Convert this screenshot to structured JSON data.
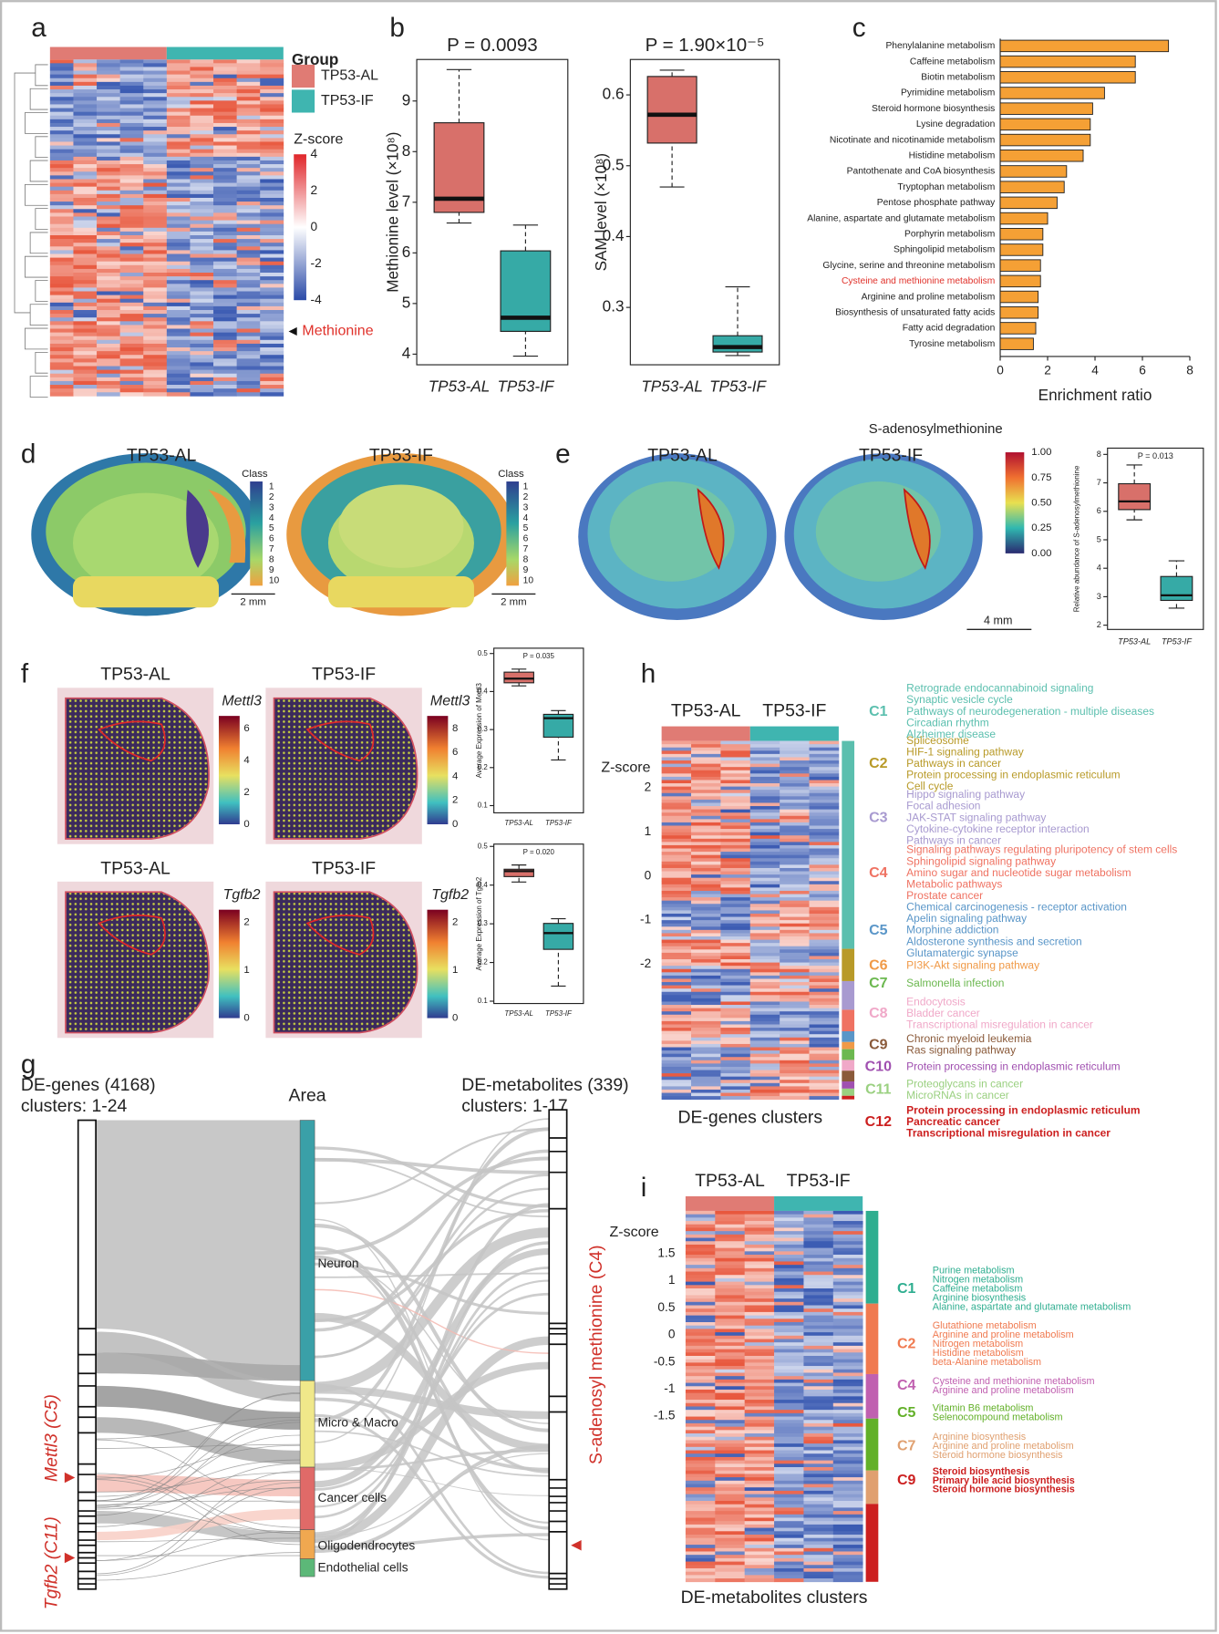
{
  "panel_labels": [
    "a",
    "b",
    "c",
    "d",
    "e",
    "f",
    "g",
    "h",
    "i"
  ],
  "a": {
    "group_title": "Group",
    "groups": [
      "TP53-AL",
      "TP53-IF"
    ],
    "group_colors": [
      "#e07b74",
      "#3fb5b0"
    ],
    "zscore_title": "Z-score",
    "zscore_ticks": [
      4,
      2,
      0,
      -2,
      -4
    ],
    "annotation": "Methionine"
  },
  "chart_data": [
    {
      "type": "box",
      "title": "P = 0.0093",
      "ylabel": "Methionine level (×10⁸)",
      "categories": [
        "TP53-AL",
        "TP53-IF"
      ],
      "values": [
        [
          6.59,
          6.8,
          7.07,
          8.57,
          9.62
        ],
        [
          3.96,
          4.45,
          4.72,
          6.04,
          6.55
        ]
      ],
      "colors": [
        "#d8706a",
        "#36aaa6"
      ],
      "ylim": [
        3.79,
        9.82
      ],
      "yticks": [
        4,
        5,
        6,
        7,
        8,
        9
      ]
    },
    {
      "type": "box",
      "title": "P = 1.90×10⁻⁵",
      "ylabel": "SAM level (×10⁸)",
      "categories": [
        "TP53-AL",
        "TP53-IF"
      ],
      "values": [
        [
          0.47,
          0.532,
          0.572,
          0.626,
          0.635
        ],
        [
          0.232,
          0.237,
          0.244,
          0.26,
          0.329
        ]
      ],
      "colors": [
        "#d8706a",
        "#36aaa6"
      ],
      "ylim": [
        0.219,
        0.65
      ],
      "yticks": [
        0.3,
        0.4,
        0.5,
        0.6
      ]
    },
    {
      "type": "hbar",
      "xlabel": "Enrichment ratio",
      "categories": [
        "Phenylalanine metabolism",
        "Caffeine metabolism",
        "Biotin metabolism",
        "Pyrimidine metabolism",
        "Steroid hormone biosynthesis",
        "Lysine degradation",
        "Nicotinate and nicotinamide metabolism",
        "Histidine metabolism",
        "Pantothenate and CoA biosynthesis",
        "Tryptophan metabolism",
        "Pentose phosphate pathway",
        "Alanine, aspartate and glutamate metabolism",
        "Porphyrin metabolism",
        "Sphingolipid metabolism",
        "Glycine, serine and threonine metabolism",
        "Cysteine and methionine metabolism",
        "Arginine and proline metabolism",
        "Biosynthesis of unsaturated fatty acids",
        "Fatty acid degradation",
        "Tyrosine metabolism"
      ],
      "values": [
        7.1,
        5.7,
        5.7,
        4.4,
        3.9,
        3.8,
        3.8,
        3.5,
        2.8,
        2.7,
        2.4,
        2.0,
        1.8,
        1.8,
        1.7,
        1.7,
        1.6,
        1.6,
        1.5,
        1.4
      ],
      "color": "#f5a035",
      "highlight_index": 15,
      "highlight_color": "#e0312a",
      "xlim": [
        0,
        8
      ],
      "xticks": [
        0,
        2,
        4,
        6,
        8
      ]
    },
    {
      "type": "box",
      "title": "P = 0.013",
      "ylabel": "Relative abundance of S-adenosylmethionine",
      "categories": [
        "TP53-AL",
        "TP53-IF"
      ],
      "values": [
        [
          5.7,
          6.06,
          6.35,
          6.97,
          7.63
        ],
        [
          2.6,
          2.87,
          3.05,
          3.71,
          4.26
        ]
      ],
      "colors": [
        "#d8706a",
        "#36aaa6"
      ],
      "ylim": [
        1.85,
        8.22
      ],
      "yticks": [
        2,
        3,
        4,
        5,
        6,
        7,
        8
      ]
    },
    {
      "type": "box",
      "title": "P = 0.035",
      "ylabel": "Average Expression of Mettl3",
      "categories": [
        "TP53-AL",
        "TP53-IF"
      ],
      "values": [
        [
          0.415,
          0.423,
          0.434,
          0.451,
          0.459
        ],
        [
          0.22,
          0.28,
          0.33,
          0.34,
          0.35
        ]
      ],
      "colors": [
        "#d8706a",
        "#36aaa6"
      ],
      "ylim": [
        0.081,
        0.514
      ],
      "yticks": [
        0.1,
        0.2,
        0.3,
        0.4,
        0.5
      ]
    },
    {
      "type": "box",
      "title": "P = 0.020",
      "ylabel": "Average Expression of Tgfb2",
      "categories": [
        "TP53-AL",
        "TP53-IF"
      ],
      "values": [
        [
          0.408,
          0.422,
          0.436,
          0.441,
          0.452
        ],
        [
          0.139,
          0.234,
          0.276,
          0.301,
          0.313
        ]
      ],
      "colors": [
        "#d8706a",
        "#36aaa6"
      ],
      "ylim": [
        0.094,
        0.506
      ],
      "yticks": [
        0.1,
        0.2,
        0.3,
        0.4,
        0.5
      ]
    }
  ],
  "d": {
    "titles": [
      "TP53-AL",
      "TP53-IF"
    ],
    "class_title": "Class",
    "classes": [
      1,
      2,
      3,
      4,
      5,
      6,
      7,
      8,
      9,
      10
    ],
    "scale_bars": [
      "2 mm",
      "2 mm"
    ]
  },
  "e": {
    "titles": [
      "TP53-AL",
      "TP53-IF"
    ],
    "colorbar_title": "S-adenosylmethionine",
    "colorbar_ticks": [
      {
        "value": 1,
        "label": "1.00"
      },
      0.75,
      {
        "value": 0.5,
        "label": "0.50"
      },
      0.25,
      {
        "value": 0,
        "label": "0.00"
      }
    ],
    "scale_bar": "4 mm"
  },
  "f": {
    "titles": [
      "TP53-AL",
      "TP53-IF",
      "TP53-AL",
      "TP53-IF"
    ],
    "genes": [
      "Mettl3",
      "Mettl3",
      "Tgfb2",
      "Tgfb2"
    ],
    "colorbar_ticks": [
      [
        0,
        2,
        4,
        6
      ],
      [
        0,
        2,
        4,
        6,
        8
      ],
      [
        0,
        1,
        2
      ],
      [
        0,
        1,
        2
      ]
    ]
  },
  "g": {
    "left_title": "DE-genes (4168)",
    "left_subtitle": "clusters: 1-24",
    "area_title": "Area",
    "right_title": "DE-metabolites (339)",
    "right_subtitle": "clusters: 1-17",
    "areas": [
      "Neuron",
      "Micro & Macro",
      "Cancer cells",
      "Oligodendrocytes",
      "Endothelial cells"
    ],
    "area_colors": [
      "#3aa0a8",
      "#f0e88a",
      "#e06a68",
      "#f0a850",
      "#5cb878"
    ],
    "left_labels": [
      "Mettl3 (C5)",
      "Tgfb2 (C11)"
    ],
    "right_label": "S-adenosyl methionine (C4)"
  },
  "h": {
    "groups": [
      "TP53-AL",
      "TP53-IF"
    ],
    "zscore_title": "Z-score",
    "zscore_ticks": [
      2,
      1,
      0,
      -1,
      -2
    ],
    "footer": "DE-genes clusters",
    "clusters": [
      {
        "id": "C1",
        "color": "#5bbfae",
        "terms": [
          "Retrograde endocannabinoid signaling",
          "Synaptic vesicle cycle",
          "Pathways of neurodegeneration - multiple diseases",
          "Circadian rhythm",
          "Alzheimer disease"
        ]
      },
      {
        "id": "C2",
        "color": "#b89a28",
        "terms": [
          "Spliceosome",
          "HIF-1 signaling pathway",
          "Pathways in cancer",
          "Protein processing in endoplasmic reticulum",
          "Cell cycle"
        ]
      },
      {
        "id": "C3",
        "color": "#a89ad0",
        "terms": [
          "Hippo signaling pathway",
          "Focal adhesion",
          "JAK-STAT signaling pathway",
          "Cytokine-cytokine receptor interaction",
          "Pathways in cancer"
        ]
      },
      {
        "id": "C4",
        "color": "#ef7262",
        "terms": [
          "Signaling pathways regulating pluripotency of stem cells",
          "Sphingolipid signaling pathway",
          "Amino sugar and nucleotide sugar metabolism",
          "Metabolic pathways",
          "Prostate cancer"
        ]
      },
      {
        "id": "C5",
        "color": "#5a96c8",
        "terms": [
          "Chemical carcinogenesis - receptor activation",
          "Apelin signaling pathway",
          "Morphine addiction",
          "Aldosterone synthesis and secretion",
          "Glutamatergic synapse"
        ]
      },
      {
        "id": "C6",
        "color": "#f09a48",
        "terms": [
          "PI3K-Akt signaling pathway"
        ]
      },
      {
        "id": "C7",
        "color": "#6cb850",
        "terms": [
          "Salmonella infection"
        ]
      },
      {
        "id": "C8",
        "color": "#f0a8c8",
        "terms": [
          "Endocytosis",
          "Bladder cancer",
          "Transcriptional misregulation in cancer"
        ]
      },
      {
        "id": "C9",
        "color": "#8a5a3a",
        "terms": [
          "Chronic myeloid leukemia",
          "Ras signaling pathway"
        ]
      },
      {
        "id": "C10",
        "color": "#a050b0",
        "terms": [
          "Protein processing in endoplasmic reticulum"
        ]
      },
      {
        "id": "C11",
        "color": "#9ad080",
        "terms": [
          "Proteoglycans in cancer",
          "MicroRNAs in cancer"
        ]
      },
      {
        "id": "C12",
        "color": "#cc1f1f",
        "terms": [
          "Protein processing in endoplasmic reticulum",
          "Pancreatic cancer",
          "Transcriptional misregulation in cancer"
        ]
      }
    ]
  },
  "i": {
    "groups": [
      "TP53-AL",
      "TP53-IF"
    ],
    "zscore_title": "Z-score",
    "zscore_ticks": [
      1.5,
      1,
      0.5,
      0,
      -0.5,
      -1,
      -1.5
    ],
    "footer": "DE-metabolites clusters",
    "clusters": [
      {
        "id": "C1",
        "color": "#2fae90",
        "terms": [
          "Purine metabolism",
          "Nitrogen metabolism",
          "Caffeine metabolism",
          "Arginine biosynthesis",
          "Alanine, aspartate and glutamate metabolism"
        ]
      },
      {
        "id": "C2",
        "color": "#f07a50",
        "terms": [
          "Glutathione metabolism",
          "Arginine and proline metabolism",
          "Nitrogen metabolism",
          "Histidine metabolism",
          "beta-Alanine metabolism"
        ]
      },
      {
        "id": "C4",
        "color": "#c060b0",
        "terms": [
          "Cysteine and methionine metabolism",
          "Arginine and proline metabolism"
        ]
      },
      {
        "id": "C5",
        "color": "#62b028",
        "terms": [
          "Vitamin B6 metabolism",
          "Selenocompound metabolism"
        ]
      },
      {
        "id": "C7",
        "color": "#e0a070",
        "terms": [
          "Arginine biosynthesis",
          "Arginine and proline metabolism",
          "Steroid hormone biosynthesis"
        ]
      },
      {
        "id": "C9",
        "color": "#cc1f1f",
        "terms": [
          "Steroid biosynthesis",
          "Primary bile acid biosynthesis",
          "Steroid hormone biosynthesis"
        ]
      }
    ]
  }
}
